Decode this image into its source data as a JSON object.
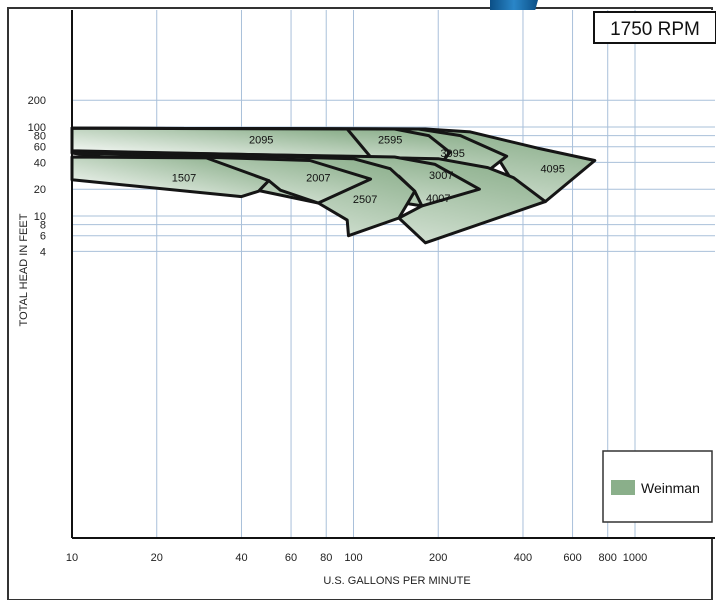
{
  "rpm_label": "1750 RPM",
  "legend": {
    "label": "Weinman",
    "color": "#8aaf8a"
  },
  "chart_data": {
    "type": "area",
    "title": "",
    "xlabel": "U.S. GALLONS PER MINUTE",
    "ylabel": "TOTAL HEAD IN FEET",
    "x_scale": "log",
    "y_scale": "log",
    "xlim": [
      10,
      1500
    ],
    "ylim": [
      4,
      230
    ],
    "grid": true,
    "legend_position": "bottom-right",
    "x_ticks": [
      10,
      20,
      40,
      60,
      80,
      100,
      200,
      400,
      600,
      800,
      1000
    ],
    "y_ticks": [
      4,
      6,
      8,
      10,
      20,
      40,
      60,
      80,
      100,
      200
    ],
    "series": [
      {
        "name": "4095",
        "label_at": [
          510,
          34
        ],
        "points": [
          [
            10,
            97
          ],
          [
            180,
            95
          ],
          [
            260,
            88
          ],
          [
            450,
            58
          ],
          [
            720,
            42
          ],
          [
            480,
            14.5
          ],
          [
            360,
            27
          ],
          [
            330,
            42
          ],
          [
            220,
            54
          ],
          [
            10,
            54
          ]
        ]
      },
      {
        "name": "3095",
        "label_at": [
          225,
          51
        ],
        "points": [
          [
            10,
            97
          ],
          [
            170,
            95
          ],
          [
            240,
            80
          ],
          [
            350,
            47
          ],
          [
            280,
            27
          ],
          [
            230,
            36
          ],
          [
            200,
            42
          ],
          [
            10,
            52
          ]
        ]
      },
      {
        "name": "2595",
        "label_at": [
          135,
          72
        ],
        "points": [
          [
            10,
            97
          ],
          [
            140,
            95
          ],
          [
            185,
            80
          ],
          [
            220,
            52
          ],
          [
            210,
            43
          ],
          [
            115,
            46
          ],
          [
            10,
            52
          ]
        ]
      },
      {
        "name": "2095",
        "label_at": [
          47,
          72
        ],
        "points": [
          [
            10,
            97
          ],
          [
            95,
            95
          ],
          [
            115,
            46
          ],
          [
            10,
            54
          ]
        ]
      },
      {
        "name": "4007",
        "label_at": [
          200,
          16
        ],
        "points": [
          [
            10,
            53
          ],
          [
            200,
            44
          ],
          [
            300,
            35
          ],
          [
            370,
            27
          ],
          [
            480,
            14.5
          ],
          [
            180,
            5
          ],
          [
            145,
            9.5
          ],
          [
            175,
            13
          ]
        ]
      },
      {
        "name": "3007",
        "label_at": [
          205,
          29
        ],
        "points": [
          [
            10,
            53
          ],
          [
            140,
            46
          ],
          [
            195,
            38
          ],
          [
            280,
            20
          ],
          [
            175,
            13
          ],
          [
            165,
            19
          ],
          [
            145,
            28
          ],
          [
            112,
            38
          ]
        ]
      },
      {
        "name": "2507",
        "label_at": [
          110,
          15.5
        ],
        "points": [
          [
            10,
            53
          ],
          [
            100,
            44
          ],
          [
            135,
            34
          ],
          [
            165,
            19
          ],
          [
            145,
            9.5
          ],
          [
            96,
            6
          ],
          [
            95,
            9
          ],
          [
            75,
            14
          ]
        ]
      },
      {
        "name": "2007",
        "label_at": [
          75,
          27
        ],
        "points": [
          [
            10,
            51
          ],
          [
            70,
            42
          ],
          [
            115,
            26
          ],
          [
            75,
            14
          ],
          [
            55,
            19.5
          ],
          [
            50,
            25
          ]
        ]
      },
      {
        "name": "1507",
        "label_at": [
          25,
          27
        ],
        "points": [
          [
            10,
            46
          ],
          [
            30,
            45
          ],
          [
            50,
            25
          ],
          [
            46,
            19
          ],
          [
            40,
            16.5
          ],
          [
            10,
            25.5
          ]
        ]
      }
    ]
  }
}
